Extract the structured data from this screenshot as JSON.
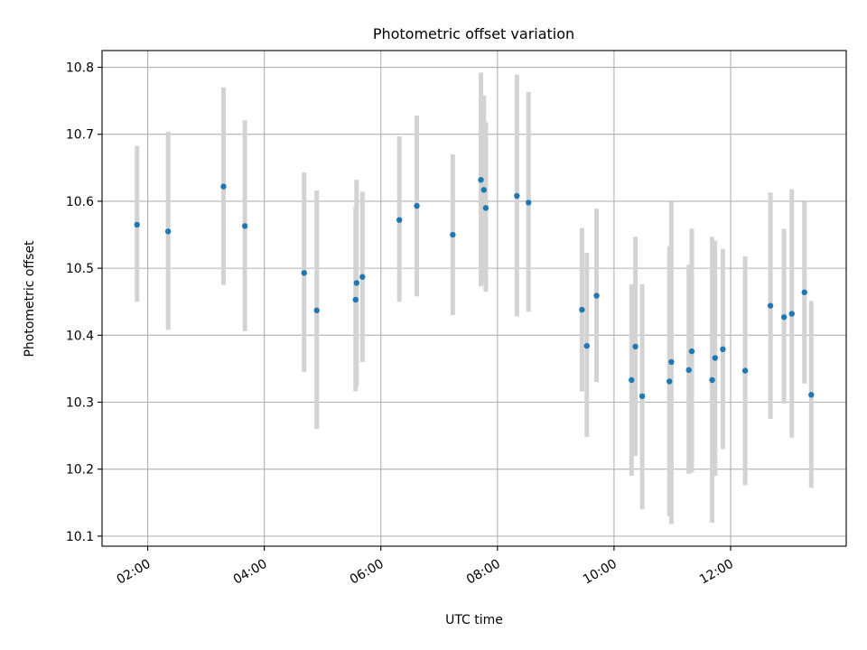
{
  "chart_data": {
    "type": "scatter",
    "title": "Photometric offset variation",
    "xlabel": "UTC time",
    "ylabel": "Photometric offset",
    "x_tick_labels": [
      "02:00",
      "04:00",
      "06:00",
      "08:00",
      "10:00",
      "12:00"
    ],
    "y_tick_labels": [
      "10.1",
      "10.2",
      "10.3",
      "10.4",
      "10.5",
      "10.6",
      "10.7",
      "10.8"
    ],
    "xlim": [
      "01:13",
      "13:59"
    ],
    "ylim": [
      10.085,
      10.825
    ],
    "grid": true,
    "marker_color": "#1f77b4",
    "errorbar_color": "#d3d3d3",
    "points": [
      {
        "t": "01:49",
        "y": 10.565,
        "lo": 10.45,
        "hi": 10.683
      },
      {
        "t": "02:21",
        "y": 10.555,
        "lo": 10.408,
        "hi": 10.704
      },
      {
        "t": "03:18",
        "y": 10.622,
        "lo": 10.475,
        "hi": 10.77
      },
      {
        "t": "03:40",
        "y": 10.563,
        "lo": 10.406,
        "hi": 10.721
      },
      {
        "t": "04:41",
        "y": 10.493,
        "lo": 10.345,
        "hi": 10.643
      },
      {
        "t": "04:54",
        "y": 10.437,
        "lo": 10.26,
        "hi": 10.616
      },
      {
        "t": "05:34",
        "y": 10.453,
        "lo": 10.316,
        "hi": 10.592
      },
      {
        "t": "05:35",
        "y": 10.478,
        "lo": 10.324,
        "hi": 10.632
      },
      {
        "t": "05:41",
        "y": 10.487,
        "lo": 10.36,
        "hi": 10.614
      },
      {
        "t": "06:19",
        "y": 10.572,
        "lo": 10.45,
        "hi": 10.697
      },
      {
        "t": "06:37",
        "y": 10.593,
        "lo": 10.458,
        "hi": 10.728
      },
      {
        "t": "07:14",
        "y": 10.55,
        "lo": 10.43,
        "hi": 10.67
      },
      {
        "t": "07:43",
        "y": 10.632,
        "lo": 10.473,
        "hi": 10.792
      },
      {
        "t": "07:46",
        "y": 10.617,
        "lo": 10.477,
        "hi": 10.758
      },
      {
        "t": "07:48",
        "y": 10.59,
        "lo": 10.465,
        "hi": 10.718
      },
      {
        "t": "08:20",
        "y": 10.608,
        "lo": 10.428,
        "hi": 10.789
      },
      {
        "t": "08:32",
        "y": 10.598,
        "lo": 10.435,
        "hi": 10.763
      },
      {
        "t": "09:27",
        "y": 10.438,
        "lo": 10.316,
        "hi": 10.56
      },
      {
        "t": "09:32",
        "y": 10.384,
        "lo": 10.248,
        "hi": 10.523
      },
      {
        "t": "09:42",
        "y": 10.459,
        "lo": 10.33,
        "hi": 10.589
      },
      {
        "t": "10:18",
        "y": 10.333,
        "lo": 10.19,
        "hi": 10.476
      },
      {
        "t": "10:22",
        "y": 10.383,
        "lo": 10.22,
        "hi": 10.547
      },
      {
        "t": "10:29",
        "y": 10.309,
        "lo": 10.14,
        "hi": 10.476
      },
      {
        "t": "10:57",
        "y": 10.331,
        "lo": 10.13,
        "hi": 10.533
      },
      {
        "t": "10:59",
        "y": 10.36,
        "lo": 10.118,
        "hi": 10.599
      },
      {
        "t": "11:17",
        "y": 10.348,
        "lo": 10.193,
        "hi": 10.505
      },
      {
        "t": "11:20",
        "y": 10.376,
        "lo": 10.195,
        "hi": 10.559
      },
      {
        "t": "11:41",
        "y": 10.333,
        "lo": 10.12,
        "hi": 10.547
      },
      {
        "t": "11:44",
        "y": 10.366,
        "lo": 10.19,
        "hi": 10.541
      },
      {
        "t": "11:52",
        "y": 10.379,
        "lo": 10.23,
        "hi": 10.529
      },
      {
        "t": "12:15",
        "y": 10.347,
        "lo": 10.176,
        "hi": 10.518
      },
      {
        "t": "12:41",
        "y": 10.444,
        "lo": 10.275,
        "hi": 10.613
      },
      {
        "t": "12:55",
        "y": 10.427,
        "lo": 10.298,
        "hi": 10.559
      },
      {
        "t": "13:03",
        "y": 10.432,
        "lo": 10.247,
        "hi": 10.618
      },
      {
        "t": "13:16",
        "y": 10.464,
        "lo": 10.328,
        "hi": 10.599
      },
      {
        "t": "13:23",
        "y": 10.311,
        "lo": 10.172,
        "hi": 10.451
      }
    ]
  }
}
